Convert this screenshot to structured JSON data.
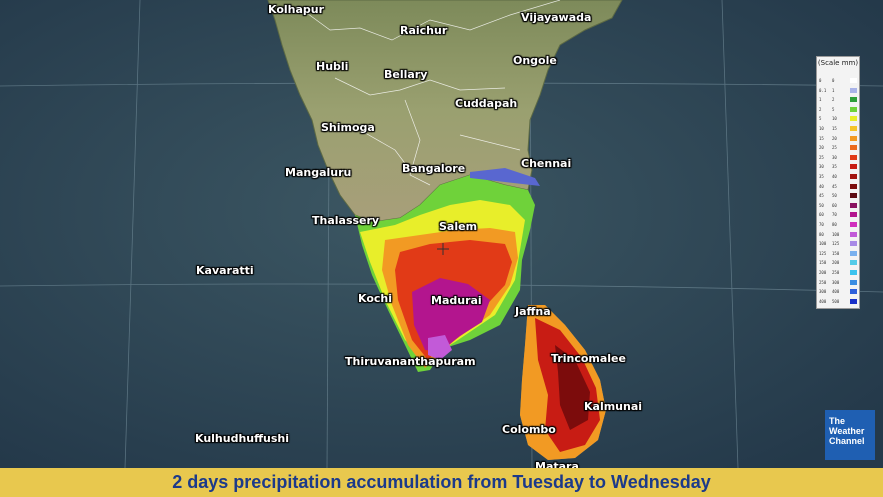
{
  "cities": [
    {
      "id": "kolhapur",
      "name": "Kolhapur"
    },
    {
      "id": "raichur",
      "name": "Raichur"
    },
    {
      "id": "vijayawada",
      "name": "Vijayawada"
    },
    {
      "id": "hubli",
      "name": "Hubli"
    },
    {
      "id": "bellary",
      "name": "Bellary"
    },
    {
      "id": "ongole",
      "name": "Ongole"
    },
    {
      "id": "cuddapah",
      "name": "Cuddapah"
    },
    {
      "id": "shimoga",
      "name": "Shimoga"
    },
    {
      "id": "mangaluru",
      "name": "Mangaluru"
    },
    {
      "id": "bangalore",
      "name": "Bangalore"
    },
    {
      "id": "chennai",
      "name": "Chennai"
    },
    {
      "id": "thalassery",
      "name": "Thalassery"
    },
    {
      "id": "salem",
      "name": "Salem"
    },
    {
      "id": "kavaratti",
      "name": "Kavaratti"
    },
    {
      "id": "kochi",
      "name": "Kochi"
    },
    {
      "id": "madurai",
      "name": "Madurai"
    },
    {
      "id": "jaffna",
      "name": "Jaffna"
    },
    {
      "id": "trincomalee",
      "name": "Trincomalee"
    },
    {
      "id": "thiruvananthapuram",
      "name": "Thiruvananthapuram"
    },
    {
      "id": "kalmunai",
      "name": "Kalmunai"
    },
    {
      "id": "colombo",
      "name": "Colombo"
    },
    {
      "id": "kulhudhuffushi",
      "name": "Kulhudhuffushi"
    },
    {
      "id": "matara",
      "name": "Matara"
    }
  ],
  "legend": {
    "title": "(Scale mm)",
    "rows": [
      {
        "a": "0",
        "b": "0",
        "color": "#ffffff"
      },
      {
        "a": "0.1",
        "b": "1",
        "color": "#a9b3e8"
      },
      {
        "a": "1",
        "b": "2",
        "color": "#2e9e3a"
      },
      {
        "a": "2",
        "b": "5",
        "color": "#6fd23a"
      },
      {
        "a": "5",
        "b": "10",
        "color": "#e8ee2a"
      },
      {
        "a": "10",
        "b": "15",
        "color": "#f5c52a"
      },
      {
        "a": "15",
        "b": "20",
        "color": "#f29a23"
      },
      {
        "a": "20",
        "b": "25",
        "color": "#ec6a1d"
      },
      {
        "a": "25",
        "b": "30",
        "color": "#e13a17"
      },
      {
        "a": "30",
        "b": "35",
        "color": "#c81c14"
      },
      {
        "a": "35",
        "b": "40",
        "color": "#a3140f"
      },
      {
        "a": "40",
        "b": "45",
        "color": "#7c0c0c"
      },
      {
        "a": "45",
        "b": "50",
        "color": "#5d0a12"
      },
      {
        "a": "50",
        "b": "60",
        "color": "#8a1260"
      },
      {
        "a": "60",
        "b": "70",
        "color": "#b3158e"
      },
      {
        "a": "70",
        "b": "80",
        "color": "#d12fbd"
      },
      {
        "a": "80",
        "b": "100",
        "color": "#c25ad8"
      },
      {
        "a": "100",
        "b": "125",
        "color": "#a88ae6"
      },
      {
        "a": "125",
        "b": "150",
        "color": "#79b0ee"
      },
      {
        "a": "150",
        "b": "200",
        "color": "#54cbe8"
      },
      {
        "a": "200",
        "b": "250",
        "color": "#3cc3ee"
      },
      {
        "a": "250",
        "b": "300",
        "color": "#3b8de2"
      },
      {
        "a": "300",
        "b": "400",
        "color": "#2e5fdb"
      },
      {
        "a": "400",
        "b": "500",
        "color": "#1830c8"
      }
    ]
  },
  "logo": {
    "line1": "The",
    "line2": "Weather",
    "line3": "Channel"
  },
  "caption": "2 days precipitation accumulation from Tuesday to Wednesday"
}
